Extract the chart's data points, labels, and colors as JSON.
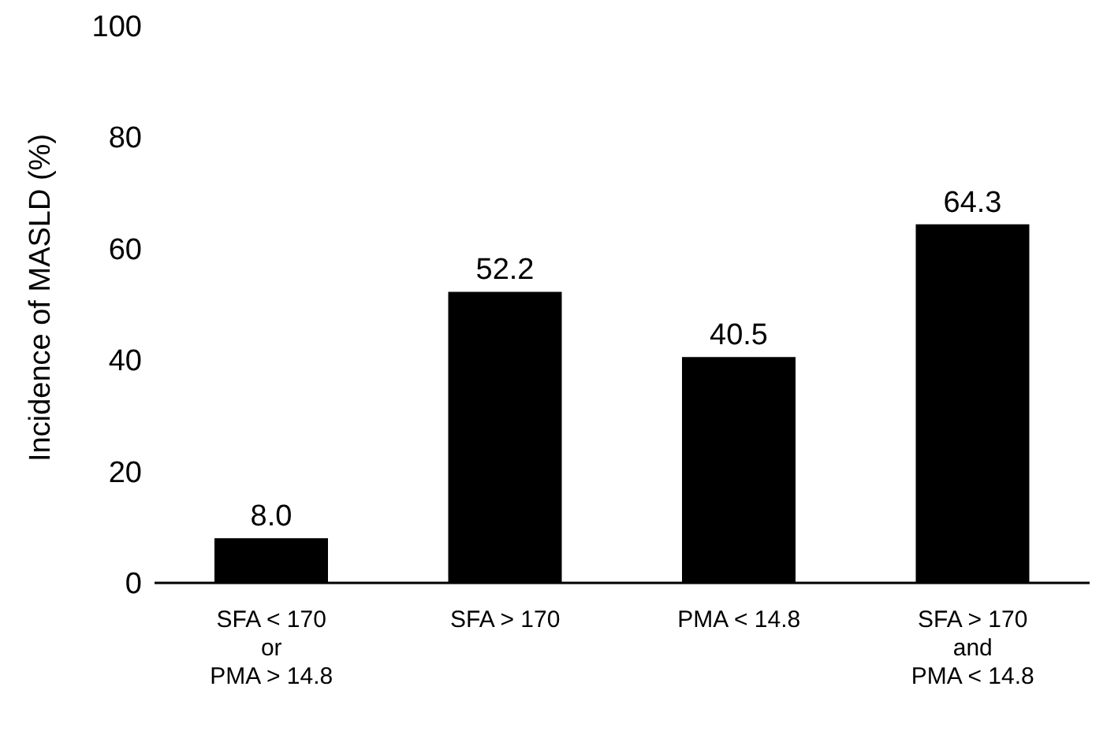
{
  "chart_data": {
    "type": "bar",
    "ylabel": "Incidence of MASLD (%)",
    "categories": [
      "SFA < 170\nor\nPMA > 14.8",
      "SFA > 170",
      "PMA < 14.8",
      "SFA > 170\nand\nPMA < 14.8"
    ],
    "values": [
      8.0,
      52.2,
      40.5,
      64.3
    ],
    "value_labels": [
      "8.0",
      "52.2",
      "40.5",
      "64.3"
    ],
    "color": "#000000",
    "ylim": [
      0,
      100
    ],
    "yticks": [
      0,
      20,
      40,
      60,
      80,
      100
    ],
    "grid": false,
    "legend": false
  }
}
